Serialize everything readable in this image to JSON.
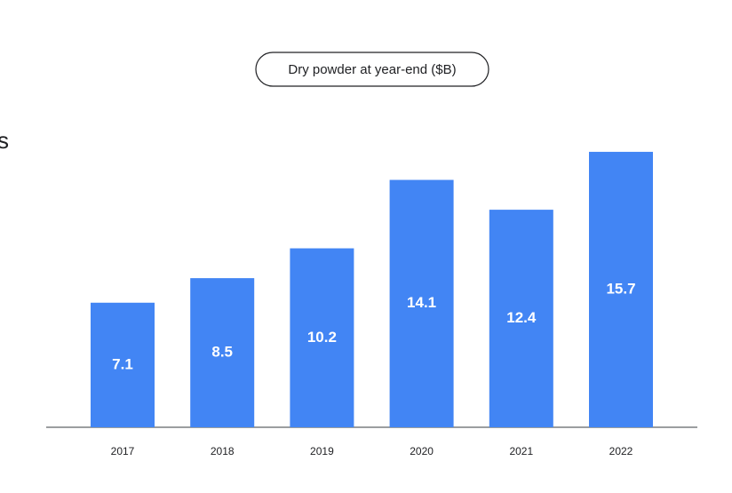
{
  "clipped_text": "s",
  "chart_data": {
    "type": "bar",
    "title": "Dry powder at year-end ($B)",
    "categories": [
      "2017",
      "2018",
      "2019",
      "2020",
      "2021",
      "2022"
    ],
    "values": [
      7.1,
      8.5,
      10.2,
      14.1,
      12.4,
      15.7
    ],
    "color": "#4285f4"
  }
}
